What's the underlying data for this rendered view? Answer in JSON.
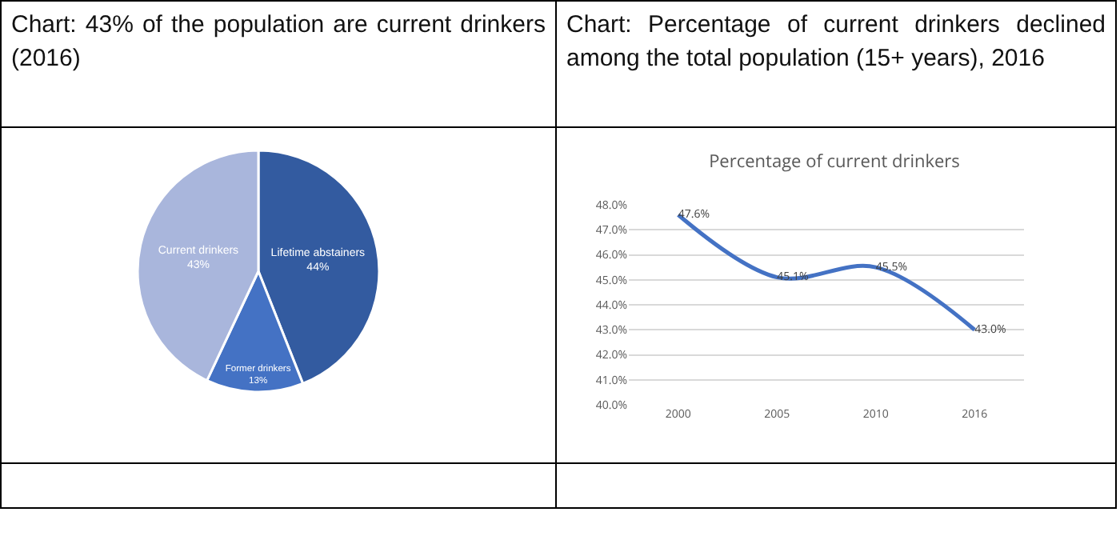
{
  "chart_data": [
    {
      "type": "pie",
      "title": "Chart: 43% of the population are current drinkers (2016)",
      "categories": [
        "Lifetime abstainers",
        "Former drinkers",
        "Current drinkers"
      ],
      "values": [
        44,
        13,
        43
      ],
      "value_labels": [
        "44%",
        "13%",
        "43%"
      ],
      "colors": [
        "#335ba0",
        "#4472c4",
        "#a9b6dc"
      ],
      "legend": false
    },
    {
      "type": "line",
      "title": "Chart: Percentage of current drinkers declined among the total population (15+ years), 2016",
      "subtitle": "Percentage of current drinkers",
      "categories": [
        "2000",
        "2005",
        "2010",
        "2016"
      ],
      "series": [
        {
          "color": "#4472c4",
          "values": [
            47.6,
            45.1,
            45.5,
            43.0
          ],
          "value_labels": [
            "47.6%",
            "45.1%",
            "45.5%",
            "43.0%"
          ]
        }
      ],
      "ylim": [
        40,
        48
      ],
      "yticks": [
        {
          "value": 40,
          "label": "40.0%"
        },
        {
          "value": 41,
          "label": "41.0%"
        },
        {
          "value": 42,
          "label": "42.0%"
        },
        {
          "value": 43,
          "label": "43.0%"
        },
        {
          "value": 44,
          "label": "44.0%"
        },
        {
          "value": 45,
          "label": "45.0%"
        },
        {
          "value": 46,
          "label": "46.0%"
        },
        {
          "value": 47,
          "label": "47.0%"
        },
        {
          "value": 48,
          "label": "48.0%"
        }
      ],
      "grid": "y",
      "legend": false,
      "marker": "none",
      "line_style": "solid"
    }
  ]
}
